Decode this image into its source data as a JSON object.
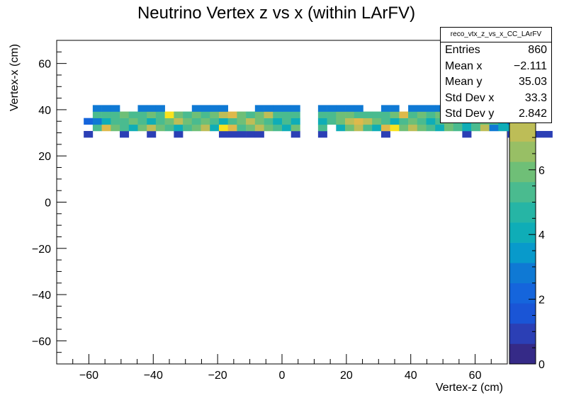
{
  "chart_data": {
    "type": "heatmap",
    "title": "Neutrino Vertex z vs x (within LArFV)",
    "xlabel": "Vertex-z (cm)",
    "ylabel": "Vertex-x (cm)",
    "xlim": [
      -70,
      70
    ],
    "ylim": [
      -70,
      70
    ],
    "zlim": [
      0,
      10
    ],
    "x_ticks": [
      -60,
      -40,
      -20,
      0,
      20,
      40,
      60
    ],
    "y_ticks": [
      -60,
      -40,
      -20,
      0,
      20,
      40,
      60
    ],
    "z_ticks": [
      0,
      2,
      4,
      6,
      8
    ],
    "bin_width_x": 2.8,
    "bin_width_y": 2.8,
    "x_bins_start": -61.6,
    "y_bins_start": 28.0,
    "rows": [
      [
        1,
        0,
        0,
        0,
        1,
        0,
        0,
        1,
        0,
        0,
        1,
        0,
        0,
        0,
        0,
        1,
        1,
        1,
        1,
        1,
        0,
        0,
        0,
        1,
        0,
        0,
        1,
        0,
        0,
        0,
        0,
        0,
        0,
        1,
        0,
        0,
        0,
        0,
        0,
        0,
        0,
        0,
        1,
        0,
        0,
        0,
        0,
        1,
        1,
        1,
        1,
        1,
        0,
        0,
        1,
        0,
        0,
        1,
        0,
        0,
        1,
        1,
        0,
        0,
        1,
        1,
        1,
        0
      ],
      [
        0,
        5,
        8,
        6,
        5,
        4,
        6,
        7,
        6,
        5,
        4,
        5,
        6,
        7,
        4,
        9,
        8,
        5,
        6,
        7,
        6,
        5,
        4,
        6,
        0,
        0,
        5,
        0,
        4,
        6,
        7,
        5,
        4,
        8,
        9,
        6,
        7,
        6,
        5,
        4,
        6,
        5,
        4,
        5,
        7,
        3,
        4,
        4,
        0,
        0,
        0,
        0,
        0,
        0,
        0,
        0,
        0,
        0,
        0,
        0,
        0,
        0,
        0,
        0,
        0,
        0,
        0,
        0
      ],
      [
        2,
        3,
        4,
        5,
        5,
        6,
        5,
        4,
        5,
        6,
        7,
        6,
        5,
        6,
        5,
        4,
        5,
        6,
        7,
        6,
        5,
        4,
        5,
        4,
        0,
        0,
        4,
        5,
        6,
        7,
        8,
        7,
        6,
        5,
        4,
        5,
        6,
        5,
        4,
        5,
        6,
        5,
        4,
        5,
        6,
        5,
        4,
        3,
        3,
        4,
        0,
        0,
        0,
        0,
        0,
        0,
        0,
        0,
        0,
        0,
        0,
        0,
        0,
        0,
        0,
        0,
        0,
        0
      ],
      [
        0,
        5,
        5,
        5,
        6,
        5,
        5,
        6,
        5,
        9,
        6,
        5,
        6,
        5,
        6,
        7,
        8,
        6,
        5,
        6,
        7,
        5,
        5,
        5,
        0,
        0,
        5,
        5,
        6,
        6,
        5,
        5,
        5,
        5,
        6,
        8,
        5,
        6,
        5,
        6,
        5,
        5,
        6,
        5,
        6,
        5,
        5,
        5,
        0,
        0,
        0,
        0,
        0,
        0,
        0,
        0,
        0,
        0,
        0,
        0,
        0,
        0,
        0,
        0,
        0,
        0,
        0,
        0
      ],
      [
        0,
        3,
        3,
        3,
        0,
        0,
        3,
        3,
        3,
        0,
        0,
        0,
        3,
        3,
        3,
        3,
        0,
        0,
        0,
        3,
        3,
        3,
        3,
        3,
        0,
        0,
        3,
        3,
        3,
        3,
        3,
        0,
        0,
        3,
        3,
        0,
        3,
        3,
        3,
        3,
        0,
        0,
        3,
        3,
        3,
        0,
        0,
        0,
        0,
        0,
        0,
        0,
        0,
        0,
        0,
        0,
        0,
        0,
        0,
        0,
        0,
        0,
        0,
        0,
        0,
        0,
        0,
        0
      ]
    ]
  },
  "stats": {
    "name": "reco_vtx_z_vs_x_CC_LArFV",
    "entries_label": "Entries",
    "entries_value": "860",
    "mean_x_label": "Mean x",
    "mean_x_value": "−2.111",
    "mean_y_label": "Mean y",
    "mean_y_value": "35.03",
    "std_x_label": "Std Dev x",
    "std_x_value": "33.3",
    "std_y_label": "Std Dev y",
    "std_y_value": "2.842"
  }
}
